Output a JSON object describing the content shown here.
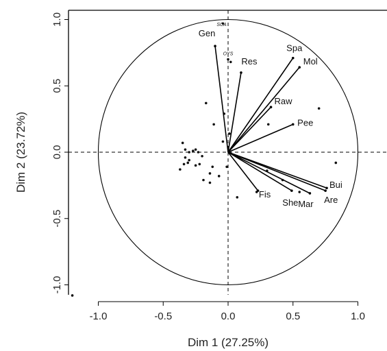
{
  "chart_data": {
    "type": "scatter",
    "title": "",
    "xlabel": "Dim 1 (27.25%)",
    "ylabel": "Dim 2 (23.72%)",
    "xlim": [
      -1.2,
      1.2
    ],
    "ylim": [
      -1.1,
      1.1
    ],
    "xticks": [
      -1.0,
      -0.5,
      0.0,
      0.5,
      1.0
    ],
    "yticks": [
      -1.0,
      -0.5,
      0.0,
      0.5,
      1.0
    ],
    "xtick_labels": [
      "-1.0",
      "-0.5",
      "0.0",
      "0.5",
      "1.0"
    ],
    "ytick_labels": [
      "-1.0",
      "-0.5",
      "0.0",
      "0.5",
      "1.0"
    ],
    "reference_lines": {
      "x": 0,
      "y": 0,
      "style": "dashed"
    },
    "correlation_circle_radius": 1.0,
    "vectors": [
      {
        "label": "Gen",
        "x": -0.1,
        "y": 0.8
      },
      {
        "label": "Res",
        "x": 0.1,
        "y": 0.6
      },
      {
        "label": "Spa",
        "x": 0.5,
        "y": 0.71
      },
      {
        "label": "Mol",
        "x": 0.55,
        "y": 0.64
      },
      {
        "label": "Raw",
        "x": 0.33,
        "y": 0.34
      },
      {
        "label": "Pee",
        "x": 0.5,
        "y": 0.21
      },
      {
        "label": "Bui",
        "x": 0.76,
        "y": -0.27
      },
      {
        "label": "Are",
        "x": 0.75,
        "y": -0.29
      },
      {
        "label": "Mar",
        "x": 0.63,
        "y": -0.31
      },
      {
        "label": "She",
        "x": 0.49,
        "y": -0.29
      },
      {
        "label": "Fis",
        "x": 0.23,
        "y": -0.29
      }
    ],
    "supplementary_labels": [
      {
        "label": "SCA",
        "x": -0.05,
        "y": 0.95
      },
      {
        "label": "OYS",
        "x": 0.0,
        "y": 0.73
      }
    ],
    "points": [
      {
        "x": -0.04,
        "y": 0.97
      },
      {
        "x": 0.0,
        "y": 0.7
      },
      {
        "x": 0.02,
        "y": 0.68
      },
      {
        "x": -0.17,
        "y": 0.37
      },
      {
        "x": -0.11,
        "y": 0.21
      },
      {
        "x": -0.03,
        "y": 0.29
      },
      {
        "x": -0.04,
        "y": 0.08
      },
      {
        "x": -0.35,
        "y": 0.07
      },
      {
        "x": -0.33,
        "y": 0.02
      },
      {
        "x": -0.3,
        "y": 0.0
      },
      {
        "x": -0.27,
        "y": 0.01
      },
      {
        "x": -0.25,
        "y": 0.02
      },
      {
        "x": -0.23,
        "y": 0.0
      },
      {
        "x": -0.33,
        "y": -0.04
      },
      {
        "x": -0.3,
        "y": -0.06
      },
      {
        "x": -0.31,
        "y": -0.08
      },
      {
        "x": -0.34,
        "y": -0.09
      },
      {
        "x": -0.37,
        "y": -0.13
      },
      {
        "x": -0.25,
        "y": -0.1
      },
      {
        "x": -0.22,
        "y": -0.09
      },
      {
        "x": -0.2,
        "y": -0.03
      },
      {
        "x": -0.12,
        "y": -0.11
      },
      {
        "x": -0.19,
        "y": -0.21
      },
      {
        "x": -0.14,
        "y": -0.23
      },
      {
        "x": -0.07,
        "y": -0.18
      },
      {
        "x": -0.14,
        "y": -0.16
      },
      {
        "x": -0.01,
        "y": -0.11
      },
      {
        "x": 0.07,
        "y": -0.34
      },
      {
        "x": 0.22,
        "y": -0.3
      },
      {
        "x": 0.42,
        "y": -0.21
      },
      {
        "x": 0.55,
        "y": -0.3
      },
      {
        "x": 0.7,
        "y": 0.33
      },
      {
        "x": 0.83,
        "y": -0.08
      },
      {
        "x": 0.31,
        "y": 0.21
      },
      {
        "x": 0.3,
        "y": -0.14
      },
      {
        "x": 0.01,
        "y": 0.14
      },
      {
        "x": -1.2,
        "y": -1.08
      }
    ]
  }
}
